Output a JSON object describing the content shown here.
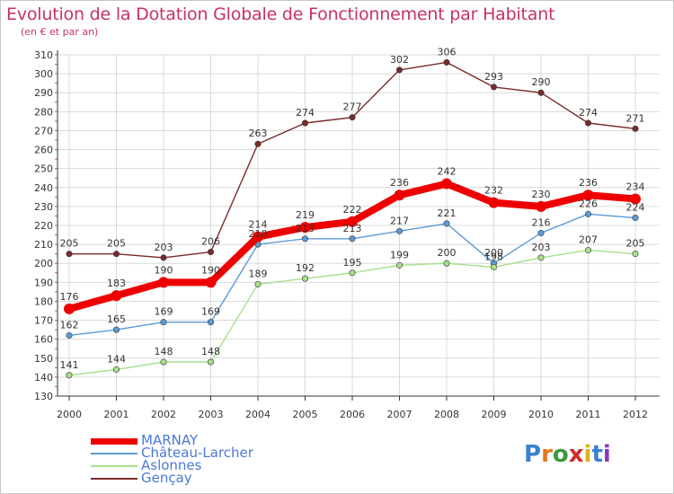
{
  "header": {
    "title": "Evolution de la Dotation Globale de Fonctionnement par Habitant",
    "subtitle": "(en € et par an)"
  },
  "logo": {
    "text": "Proxiti"
  },
  "colors": {
    "title": "#c8306a",
    "legend_text": "#4a78d8",
    "grid": "#d9d9d9",
    "axis": "#333333"
  },
  "chart_data": {
    "type": "line",
    "x": [
      "2000",
      "2001",
      "2002",
      "2003",
      "2004",
      "2005",
      "2006",
      "2007",
      "2008",
      "2009",
      "2010",
      "2011",
      "2012"
    ],
    "ylim": [
      130,
      310
    ],
    "yticks": [
      130,
      140,
      150,
      160,
      170,
      180,
      190,
      200,
      210,
      220,
      230,
      240,
      250,
      260,
      270,
      280,
      290,
      300,
      310
    ],
    "grid": true,
    "legend_position": "bottom-left",
    "series": [
      {
        "name": "Gençay",
        "color": "#7a2a2a",
        "values": [
          205,
          205,
          203,
          206,
          263,
          274,
          277,
          302,
          306,
          293,
          290,
          274,
          271
        ]
      },
      {
        "name": "Château-Larcher",
        "color": "#5b9bd5",
        "values": [
          162,
          165,
          169,
          169,
          210,
          213,
          213,
          217,
          221,
          200,
          216,
          226,
          224
        ]
      },
      {
        "name": "Aslonnes",
        "color": "#a6e08a",
        "values": [
          141,
          144,
          148,
          148,
          189,
          192,
          195,
          199,
          200,
          198,
          203,
          207,
          205
        ]
      },
      {
        "name": "MARNAY",
        "color": "#ee0000",
        "values": [
          176,
          183,
          190,
          190,
          214,
          219,
          222,
          236,
          242,
          232,
          230,
          236,
          234
        ]
      }
    ]
  }
}
